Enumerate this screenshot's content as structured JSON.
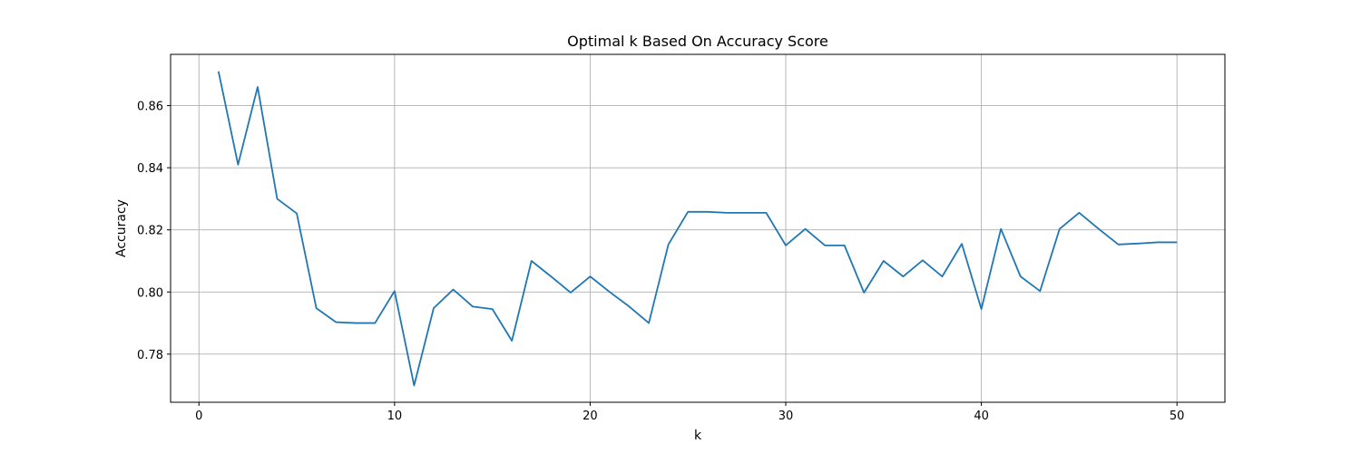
{
  "chart_data": {
    "type": "line",
    "title": "Optimal k Based On Accuracy Score",
    "xlabel": "k",
    "ylabel": "Accuracy",
    "xlim": [
      -1.45,
      52.45
    ],
    "ylim": [
      0.7645,
      0.8765
    ],
    "xticks": [
      0,
      10,
      20,
      30,
      40,
      50
    ],
    "xtick_labels": [
      "0",
      "10",
      "20",
      "30",
      "40",
      "50"
    ],
    "yticks": [
      0.78,
      0.8,
      0.82,
      0.84,
      0.86
    ],
    "ytick_labels": [
      "0.78",
      "0.80",
      "0.82",
      "0.84",
      "0.86"
    ],
    "grid": true,
    "line_color": "#1f77b4",
    "series": [
      {
        "x": [
          1,
          2,
          3,
          4,
          5,
          6,
          7,
          8,
          9,
          10,
          11,
          12,
          13,
          14,
          15,
          16,
          17,
          18,
          19,
          20,
          21,
          22,
          23,
          24,
          25,
          26,
          27,
          28,
          29,
          30,
          31,
          32,
          33,
          34,
          35,
          36,
          37,
          38,
          39,
          40,
          41,
          42,
          43,
          44,
          45,
          46,
          47,
          48,
          49,
          50
        ],
        "values": [
          0.871,
          0.841,
          0.866,
          0.83,
          0.8253,
          0.7948,
          0.7903,
          0.79,
          0.79,
          0.8003,
          0.7699,
          0.7948,
          0.8008,
          0.7953,
          0.7945,
          0.7843,
          0.81,
          0.805,
          0.7998,
          0.805,
          0.8,
          0.7953,
          0.79,
          0.8153,
          0.8258,
          0.8258,
          0.8255,
          0.8255,
          0.8255,
          0.815,
          0.8203,
          0.815,
          0.815,
          0.7998,
          0.81,
          0.805,
          0.8102,
          0.805,
          0.8155,
          0.7945,
          0.8203,
          0.805,
          0.8003,
          0.8203,
          0.8255,
          0.8203,
          0.8153,
          0.8156,
          0.816,
          0.816
        ]
      }
    ]
  }
}
